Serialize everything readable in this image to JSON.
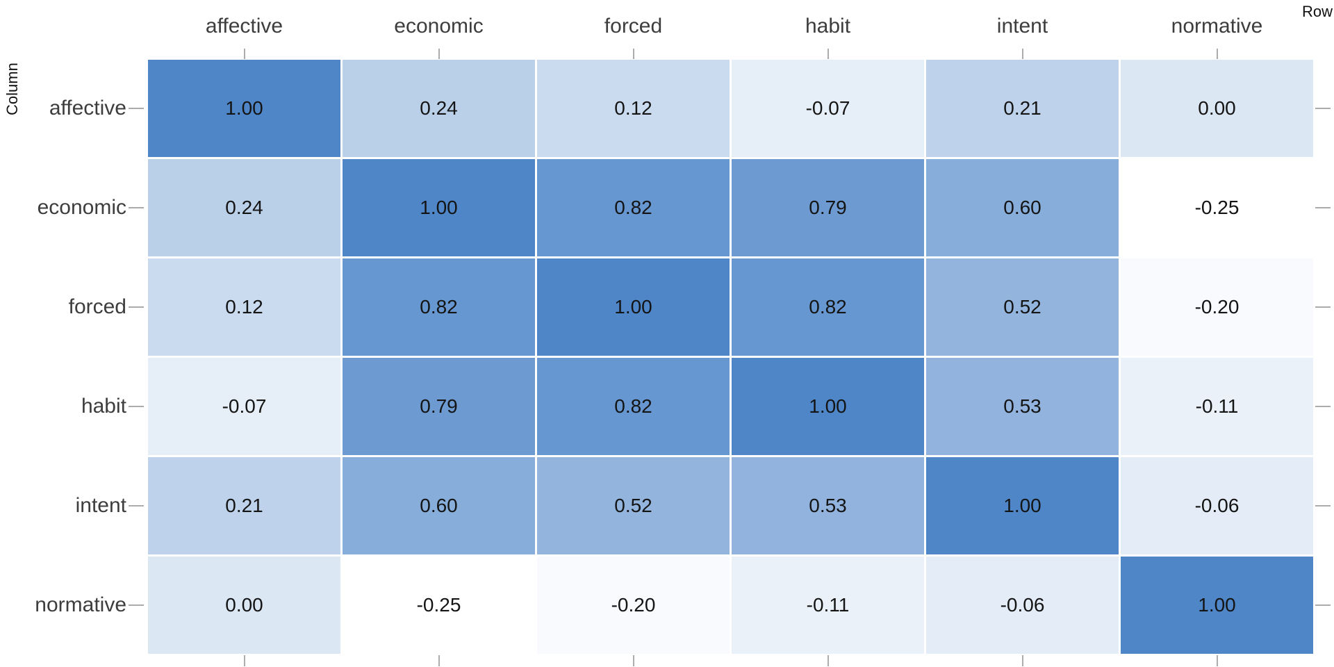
{
  "chart_data": {
    "type": "heatmap",
    "title": "",
    "x_axis_title": "Row",
    "y_axis_title": "Column",
    "categories": [
      "affective",
      "economic",
      "forced",
      "habit",
      "intent",
      "normative"
    ],
    "matrix": [
      [
        1.0,
        0.24,
        0.12,
        -0.07,
        0.21,
        0.0
      ],
      [
        0.24,
        1.0,
        0.82,
        0.79,
        0.6,
        -0.25
      ],
      [
        0.12,
        0.82,
        1.0,
        0.82,
        0.52,
        -0.2
      ],
      [
        -0.07,
        0.79,
        0.82,
        1.0,
        0.53,
        -0.11
      ],
      [
        0.21,
        0.6,
        0.52,
        0.53,
        1.0,
        -0.06
      ],
      [
        0.0,
        -0.25,
        -0.2,
        -0.11,
        -0.06,
        1.0
      ]
    ],
    "value_decimals": 2,
    "color_scale": {
      "domain": [
        -0.25,
        1.0
      ],
      "range": [
        "#ffffff",
        "#4e86c8"
      ]
    },
    "layout": {
      "grid_lines": false,
      "legend": "none",
      "x_labels_position": "top",
      "ticks": "all-sides"
    },
    "colors": {
      "background": "#ffffff",
      "label_text": "#3d3d3d",
      "value_text": "#141414",
      "axis_title_text": "#111111",
      "tick": "#ababab"
    }
  }
}
